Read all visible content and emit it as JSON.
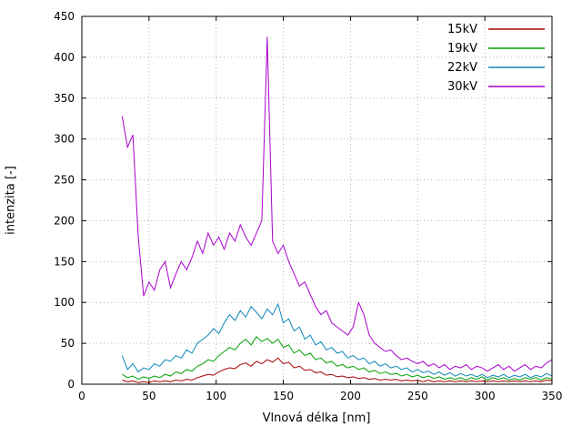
{
  "chart_data": {
    "type": "line",
    "title": "",
    "xlabel": "Vlnová délka [nm]",
    "ylabel": "intenzita [-]",
    "xlim": [
      0,
      350
    ],
    "ylim": [
      0,
      450
    ],
    "xticks": [
      0,
      50,
      100,
      150,
      200,
      250,
      300,
      350
    ],
    "yticks": [
      0,
      50,
      100,
      150,
      200,
      250,
      300,
      350,
      400,
      450
    ],
    "grid": true,
    "grid_style": "dotted",
    "legend_position": "top-right",
    "x": [
      30,
      34,
      38,
      42,
      46,
      50,
      54,
      58,
      62,
      66,
      70,
      74,
      78,
      82,
      86,
      90,
      94,
      98,
      102,
      106,
      110,
      114,
      118,
      122,
      126,
      130,
      134,
      138,
      142,
      146,
      150,
      154,
      158,
      162,
      166,
      170,
      174,
      178,
      182,
      186,
      190,
      194,
      198,
      202,
      206,
      210,
      214,
      218,
      222,
      226,
      230,
      234,
      238,
      242,
      246,
      250,
      254,
      258,
      262,
      266,
      270,
      274,
      278,
      282,
      286,
      290,
      294,
      298,
      302,
      306,
      310,
      314,
      318,
      322,
      326,
      330,
      334,
      338,
      342,
      346,
      350
    ],
    "series": [
      {
        "name": "15kV",
        "color": "#a60000",
        "values": [
          5,
          3,
          4,
          2,
          3,
          2,
          4,
          3,
          4,
          3,
          5,
          4,
          6,
          5,
          8,
          10,
          12,
          11,
          15,
          18,
          20,
          19,
          24,
          26,
          22,
          28,
          25,
          30,
          27,
          32,
          25,
          27,
          20,
          22,
          17,
          18,
          14,
          15,
          11,
          12,
          9,
          10,
          8,
          9,
          7,
          8,
          6,
          7,
          5,
          6,
          5,
          6,
          4,
          5,
          4,
          5,
          3,
          5,
          3,
          4,
          3,
          4,
          3,
          4,
          3,
          4,
          3,
          4,
          3,
          4,
          3,
          4,
          3,
          4,
          3,
          4,
          3,
          4,
          3,
          5,
          4
        ]
      },
      {
        "name": "19kV",
        "color": "#00a000",
        "values": [
          12,
          8,
          10,
          6,
          9,
          7,
          10,
          8,
          12,
          10,
          15,
          13,
          18,
          16,
          22,
          25,
          30,
          28,
          35,
          40,
          45,
          42,
          50,
          55,
          48,
          58,
          52,
          56,
          50,
          55,
          45,
          48,
          38,
          42,
          35,
          38,
          30,
          32,
          26,
          28,
          22,
          24,
          20,
          22,
          18,
          20,
          15,
          17,
          13,
          15,
          12,
          13,
          10,
          12,
          9,
          11,
          8,
          10,
          7,
          9,
          6,
          8,
          6,
          8,
          5,
          8,
          6,
          9,
          5,
          8,
          6,
          8,
          5,
          7,
          5,
          8,
          6,
          8,
          5,
          8,
          6
        ]
      },
      {
        "name": "22kV",
        "color": "#0c87b8",
        "values": [
          35,
          18,
          25,
          15,
          20,
          18,
          25,
          22,
          30,
          28,
          35,
          32,
          42,
          38,
          50,
          55,
          60,
          68,
          62,
          75,
          85,
          78,
          90,
          82,
          95,
          88,
          80,
          92,
          85,
          98,
          75,
          80,
          65,
          70,
          55,
          60,
          48,
          52,
          42,
          45,
          38,
          40,
          32,
          35,
          30,
          32,
          25,
          28,
          22,
          25,
          20,
          22,
          18,
          20,
          15,
          18,
          14,
          16,
          12,
          15,
          11,
          14,
          10,
          13,
          10,
          12,
          9,
          12,
          8,
          11,
          9,
          12,
          8,
          11,
          9,
          12,
          8,
          11,
          9,
          13,
          10
        ]
      },
      {
        "name": "30kV",
        "color": "#aa00cc",
        "values": [
          328,
          290,
          305,
          180,
          108,
          125,
          115,
          140,
          150,
          118,
          135,
          150,
          140,
          155,
          175,
          160,
          185,
          170,
          180,
          165,
          185,
          175,
          195,
          180,
          170,
          185,
          200,
          425,
          175,
          160,
          170,
          150,
          135,
          120,
          125,
          110,
          95,
          85,
          90,
          75,
          70,
          65,
          60,
          70,
          100,
          85,
          60,
          50,
          45,
          40,
          42,
          35,
          30,
          32,
          28,
          25,
          28,
          22,
          25,
          20,
          24,
          18,
          22,
          20,
          24,
          18,
          22,
          20,
          16,
          20,
          24,
          18,
          22,
          16,
          20,
          24,
          18,
          22,
          20,
          26,
          30
        ]
      }
    ]
  }
}
